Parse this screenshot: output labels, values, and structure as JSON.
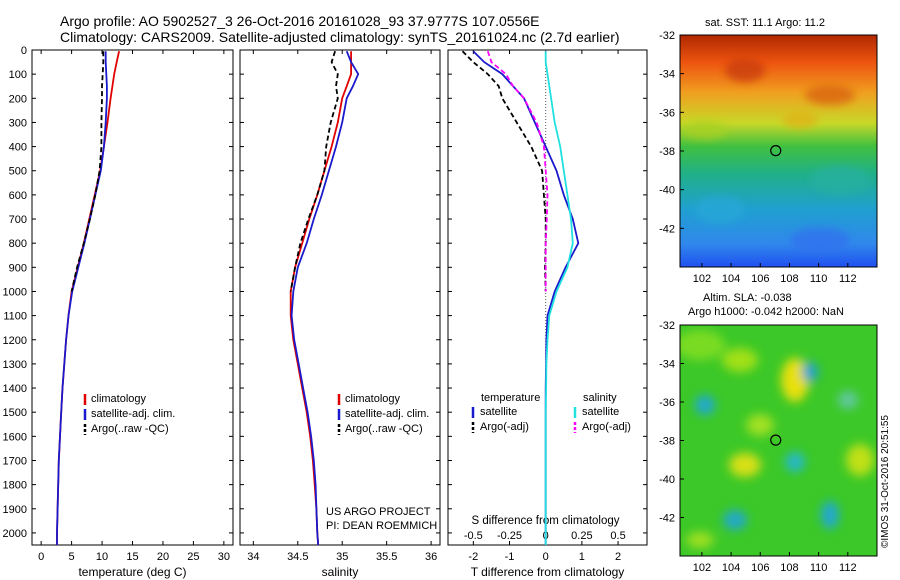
{
  "header": {
    "title_line1": "Argo profile: AO 5902527_3 26-Oct-2016 20161028_93 37.9777S 107.0556E",
    "title_line2": "Climatology: CARS2009. Satellite-adjusted climatology: synTS_20161024.nc (2.7d earlier)"
  },
  "maps": {
    "sst_title": "sat. SST: 11.1 Argo: 11.2",
    "sla_title_line1": "Altim. SLA: -0.038",
    "sla_title_line2": "Argo h1000: -0.042 h2000: NaN",
    "lon_ticks": [
      "102",
      "104",
      "106",
      "108",
      "110",
      "112"
    ],
    "lat_ticks": [
      "-32",
      "-34",
      "-36",
      "-38",
      "-40",
      "-42"
    ],
    "float_lon": 107.06,
    "float_lat": -37.98,
    "lon_range": [
      100.5,
      114
    ],
    "lat_range": [
      -44,
      -32
    ]
  },
  "stamp": "©IMOS 31-Oct-2016 20:51:55",
  "credit": {
    "line1": "US ARGO PROJECT",
    "line2": "PI: DEAN ROEMMICH"
  },
  "legends": {
    "temp": [
      "climatology",
      "satellite-adj. clim.",
      "Argo(..raw -QC)"
    ],
    "sal": [
      "climatology",
      "satellite-adj. clim.",
      "Argo(..raw -QC)"
    ],
    "diff_headers": [
      "temperature",
      "salinity"
    ],
    "diff_items": [
      "satellite",
      "Argo(-adj)",
      "satellite",
      "Argo(-adj)"
    ]
  },
  "colors": {
    "climatology": "#e00000",
    "satellite": "#1a1acc",
    "argo": "#000000",
    "s_satellite": "#20e0e0",
    "s_argo": "#ff00ff"
  },
  "chart_data": [
    {
      "type": "line",
      "xlabel": "temperature (deg C)",
      "ylim": [
        2050,
        0
      ],
      "xlim": [
        -1.5,
        31.5
      ],
      "xticks": [
        "0",
        "5",
        "10",
        "15",
        "20",
        "25",
        "30"
      ],
      "yticks": [
        "0",
        "100",
        "200",
        "300",
        "400",
        "500",
        "600",
        "700",
        "800",
        "900",
        "1000",
        "1100",
        "1200",
        "1300",
        "1400",
        "1500",
        "1600",
        "1700",
        "1800",
        "1900",
        "2000"
      ],
      "depth": [
        5,
        50,
        100,
        150,
        200,
        300,
        400,
        500,
        600,
        700,
        800,
        900,
        1000,
        1100,
        1200,
        1300,
        1400,
        1500,
        1600,
        1700,
        1800,
        1900,
        2000,
        2050
      ],
      "series": [
        {
          "name": "climatology",
          "values": [
            12.8,
            12.4,
            12.0,
            11.7,
            11.4,
            10.9,
            10.3,
            9.7,
            8.8,
            7.9,
            7.0,
            6.0,
            5.0,
            4.5,
            4.1,
            3.8,
            3.5,
            3.3,
            3.1,
            2.9,
            2.8,
            2.7,
            2.6,
            2.6
          ]
        },
        {
          "name": "satellite-adj. clim.",
          "values": [
            10.6,
            10.6,
            10.7,
            10.8,
            10.8,
            10.6,
            10.3,
            9.8,
            8.9,
            8.0,
            7.1,
            6.1,
            5.1,
            4.5,
            4.1,
            3.8,
            3.5,
            3.3,
            3.1,
            2.9,
            2.8,
            2.7,
            2.6,
            2.6
          ]
        },
        {
          "name": "Argo(..raw -QC)",
          "values": [
            10.2,
            10.2,
            10.1,
            10.0,
            10.0,
            9.9,
            9.9,
            9.6,
            8.9,
            8.0,
            7.0,
            5.9,
            5.0
          ]
        }
      ]
    },
    {
      "type": "line",
      "xlabel": "salinity",
      "ylim": [
        2050,
        0
      ],
      "xlim": [
        33.85,
        36.1
      ],
      "xticks": [
        "34",
        "34.5",
        "35",
        "35.5",
        "36"
      ],
      "depth": [
        5,
        50,
        100,
        150,
        200,
        300,
        400,
        500,
        600,
        700,
        800,
        900,
        1000,
        1100,
        1200,
        1300,
        1400,
        1500,
        1600,
        1700,
        1800,
        1900,
        2000,
        2050
      ],
      "series": [
        {
          "name": "climatology",
          "values": [
            35.1,
            35.1,
            35.1,
            35.05,
            35.0,
            34.95,
            34.88,
            34.8,
            34.72,
            34.63,
            34.55,
            34.47,
            34.42,
            34.42,
            34.45,
            34.5,
            34.55,
            34.6,
            34.64,
            34.67,
            34.69,
            34.71,
            34.72,
            34.73
          ]
        },
        {
          "name": "satellite-adj. clim.",
          "values": [
            35.05,
            35.1,
            35.18,
            35.12,
            35.05,
            35.0,
            34.93,
            34.85,
            34.77,
            34.68,
            34.6,
            34.5,
            34.45,
            34.43,
            34.46,
            34.51,
            34.56,
            34.61,
            34.65,
            34.68,
            34.7,
            34.71,
            34.72,
            34.73
          ]
        },
        {
          "name": "Argo(..raw -QC)",
          "values": [
            34.92,
            34.88,
            34.95,
            34.93,
            34.95,
            34.87,
            34.82,
            34.8,
            34.72,
            34.62,
            34.53,
            34.47,
            34.42
          ]
        }
      ]
    },
    {
      "type": "line",
      "xlabel": "T difference from climatology",
      "title": "S difference from climatology",
      "ylim": [
        2050,
        0
      ],
      "xlim": [
        -2.7,
        2.8
      ],
      "xticks": [
        "-2",
        "-1",
        "0",
        "1",
        "2"
      ],
      "s_ticks": [
        "-0.5",
        "-0.25",
        "0",
        "0.25",
        "0.5"
      ],
      "depth": [
        5,
        50,
        100,
        150,
        200,
        300,
        400,
        500,
        600,
        700,
        800,
        900,
        1000,
        1100,
        1200,
        1300,
        1400,
        1500,
        1600,
        1700,
        1800,
        1900,
        2000,
        2050
      ],
      "series": [
        {
          "name": "temperature satellite",
          "values": [
            -2.0,
            -1.7,
            -1.2,
            -0.9,
            -0.6,
            -0.3,
            0.0,
            0.3,
            0.5,
            0.75,
            0.9,
            0.55,
            0.25,
            0.05,
            0.02,
            0.01,
            0.0,
            0.0,
            0.0,
            0.0,
            0.0,
            0.0,
            0.0,
            0.0
          ]
        },
        {
          "name": "temperature Argo(-adj)",
          "values": [
            -2.3,
            -2.0,
            -1.6,
            -1.3,
            -1.2,
            -0.8,
            -0.4,
            -0.1,
            -0.05,
            0.0,
            0.0,
            -0.02,
            0.0
          ]
        },
        {
          "name": "salinity satellite",
          "values": [
            0.0,
            0.0,
            0.05,
            0.1,
            0.15,
            0.25,
            0.4,
            0.5,
            0.6,
            0.7,
            0.75,
            0.6,
            0.3,
            0.1,
            0.05,
            0.02,
            0.01,
            0.0,
            0.0,
            0.0,
            0.0,
            0.0,
            0.0,
            0.0
          ]
        },
        {
          "name": "salinity Argo(-adj)",
          "values": [
            -1.6,
            -1.5,
            -1.1,
            -0.9,
            -0.6,
            -0.25,
            -0.05,
            0.0,
            0.05,
            0.03,
            0.0,
            0.0,
            0.0
          ]
        }
      ]
    }
  ]
}
